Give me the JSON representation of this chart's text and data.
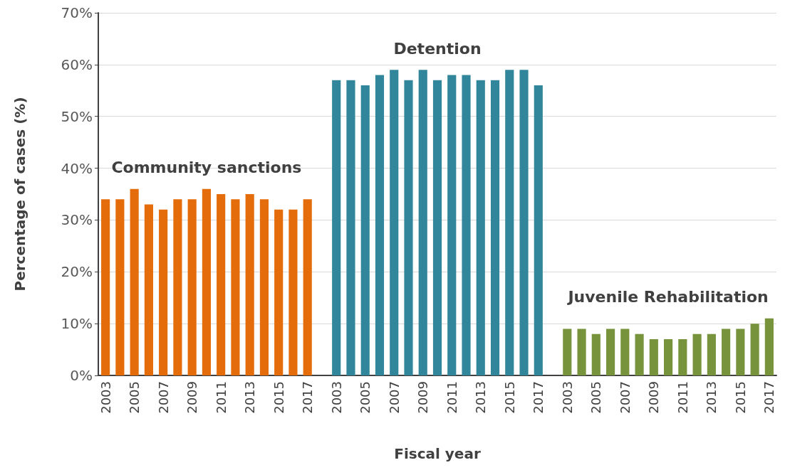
{
  "chart_data": {
    "type": "bar",
    "xlabel": "Fiscal year",
    "ylabel": "Percentage of cases (%)",
    "categories": [
      "2003",
      null,
      "2005",
      null,
      "2007",
      null,
      "2009",
      null,
      "2011",
      null,
      "2013",
      null,
      "2015",
      null,
      "2017",
      null,
      "2003",
      null,
      "2005",
      null,
      "2007",
      null,
      "2009",
      null,
      "2011",
      null,
      "2013",
      null,
      "2015",
      null,
      "2017",
      null,
      "2003",
      null,
      "2005",
      null,
      "2007",
      null,
      "2009",
      null,
      "2011",
      null,
      "2013",
      null,
      "2015",
      null,
      "2017"
    ],
    "series": [
      {
        "name": "Community sanctions",
        "color": "#e46c0a",
        "values": [
          34,
          34,
          36,
          33,
          32,
          34,
          34,
          36,
          35,
          34,
          35,
          34,
          32,
          32,
          34,
          null,
          null,
          null,
          null,
          null,
          null,
          null,
          null,
          null,
          null,
          null,
          null,
          null,
          null,
          null,
          null,
          null,
          null,
          null,
          null,
          null,
          null,
          null,
          null,
          null,
          null,
          null,
          null,
          null,
          null,
          null,
          null
        ]
      },
      {
        "name": "Detention",
        "color": "#31869b",
        "values": [
          null,
          null,
          null,
          null,
          null,
          null,
          null,
          null,
          null,
          null,
          null,
          null,
          null,
          null,
          null,
          null,
          57,
          57,
          56,
          58,
          59,
          57,
          59,
          57,
          58,
          58,
          57,
          57,
          59,
          59,
          56,
          null,
          null,
          null,
          null,
          null,
          null,
          null,
          null,
          null,
          null,
          null,
          null,
          null,
          null,
          null,
          null
        ]
      },
      {
        "name": "Juvenile Rehabilitation",
        "color": "#77933c",
        "values": [
          null,
          null,
          null,
          null,
          null,
          null,
          null,
          null,
          null,
          null,
          null,
          null,
          null,
          null,
          null,
          null,
          null,
          null,
          null,
          null,
          null,
          null,
          null,
          null,
          null,
          null,
          null,
          null,
          null,
          null,
          null,
          null,
          9,
          9,
          8,
          9,
          9,
          8,
          7,
          7,
          7,
          8,
          8,
          9,
          9,
          10,
          11
        ]
      }
    ],
    "ylim": [
      0,
      70
    ],
    "yticks": [
      {
        "value": 0,
        "label": "0%"
      },
      {
        "value": 10,
        "label": "10%"
      },
      {
        "value": 20,
        "label": "20%"
      },
      {
        "value": 30,
        "label": "30%"
      },
      {
        "value": 40,
        "label": "40%"
      },
      {
        "value": 50,
        "label": "50%"
      },
      {
        "value": 60,
        "label": "60%"
      },
      {
        "value": 70,
        "label": "70%"
      }
    ],
    "grid": "y"
  }
}
